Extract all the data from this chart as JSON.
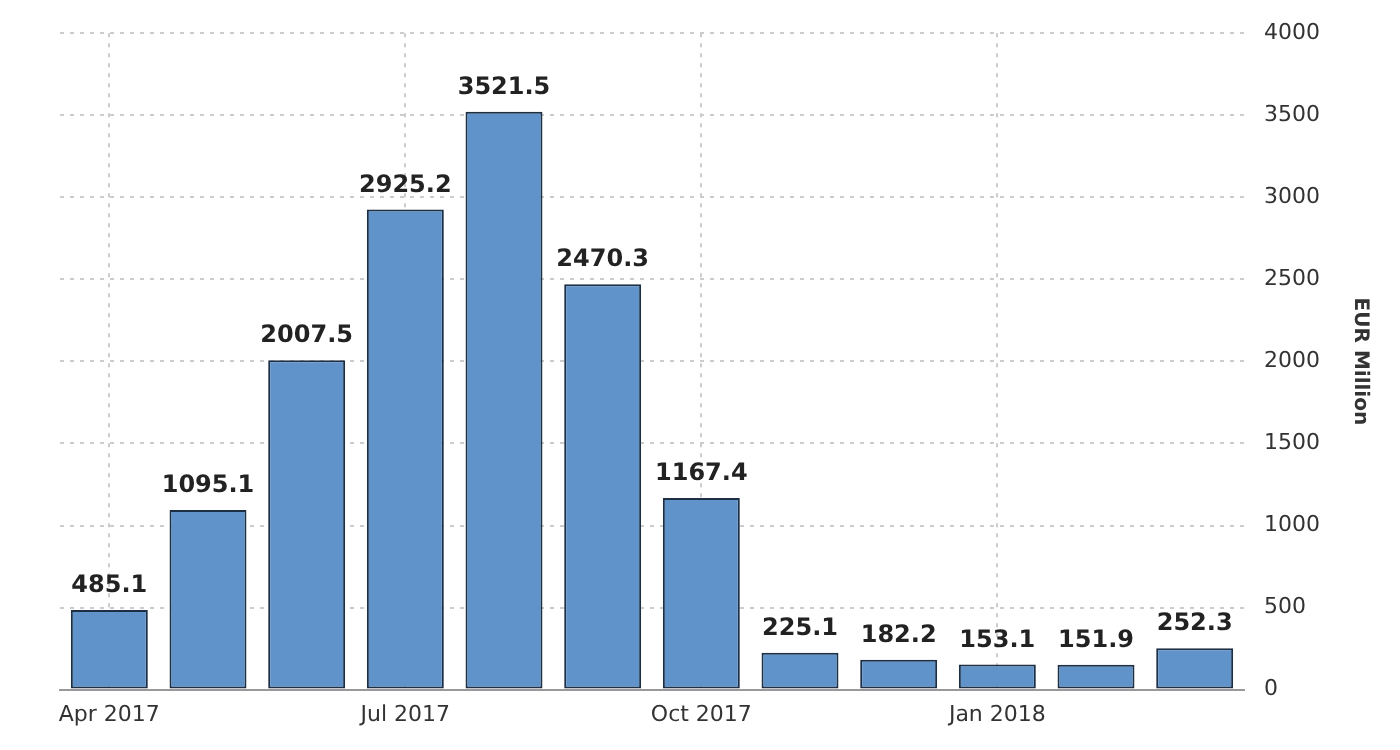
{
  "chart_data": {
    "type": "bar",
    "ylabel": "EUR Million",
    "categories": [
      "Apr 2017",
      null,
      null,
      "Jul 2017",
      null,
      null,
      "Oct 2017",
      null,
      null,
      "Jan 2018",
      null,
      null
    ],
    "values": [
      485.1,
      1095.1,
      2007.5,
      2925.2,
      3521.5,
      2470.3,
      1167.4,
      225.1,
      182.2,
      153.1,
      151.9,
      252.3
    ],
    "color": "#5f93c9",
    "ylim": [
      0,
      4000
    ],
    "yticks": [
      0,
      500,
      1000,
      1500,
      2000,
      2500,
      3000,
      3500,
      4000
    ],
    "grid": true,
    "data_labels": true,
    "legend": false
  }
}
